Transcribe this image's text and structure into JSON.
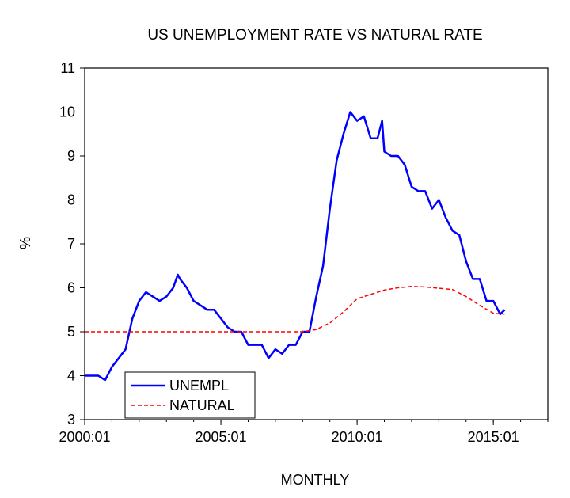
{
  "chart_data": {
    "type": "line",
    "title": "US UNEMPLOYMENT RATE VS NATURAL RATE",
    "xlabel": "MONTHLY",
    "ylabel": "%",
    "xlim": [
      "2000:01",
      "2017:01"
    ],
    "ylim": [
      3,
      11
    ],
    "x_ticks": [
      "2000:01",
      "2005:01",
      "2010:01",
      "2015:01"
    ],
    "y_ticks": [
      "3",
      "4",
      "5",
      "6",
      "7",
      "8",
      "9",
      "10",
      "11"
    ],
    "grid": false,
    "legend": {
      "placement": "bottom-left",
      "entries": [
        "UNEMPL",
        "NATURAL"
      ]
    },
    "series": [
      {
        "name": "UNEMPL",
        "color": "#0000ff",
        "style": "solid",
        "points": [
          [
            "2000:01",
            4.0
          ],
          [
            "2000:04",
            4.0
          ],
          [
            "2000:07",
            4.0
          ],
          [
            "2000:10",
            3.9
          ],
          [
            "2001:01",
            4.2
          ],
          [
            "2001:04",
            4.4
          ],
          [
            "2001:07",
            4.6
          ],
          [
            "2001:10",
            5.3
          ],
          [
            "2002:01",
            5.7
          ],
          [
            "2002:04",
            5.9
          ],
          [
            "2002:07",
            5.8
          ],
          [
            "2002:10",
            5.7
          ],
          [
            "2003:01",
            5.8
          ],
          [
            "2003:04",
            6.0
          ],
          [
            "2003:06",
            6.3
          ],
          [
            "2003:07",
            6.2
          ],
          [
            "2003:10",
            6.0
          ],
          [
            "2004:01",
            5.7
          ],
          [
            "2004:04",
            5.6
          ],
          [
            "2004:07",
            5.5
          ],
          [
            "2004:10",
            5.5
          ],
          [
            "2005:01",
            5.3
          ],
          [
            "2005:04",
            5.1
          ],
          [
            "2005:07",
            5.0
          ],
          [
            "2005:10",
            5.0
          ],
          [
            "2006:01",
            4.7
          ],
          [
            "2006:04",
            4.7
          ],
          [
            "2006:07",
            4.7
          ],
          [
            "2006:10",
            4.4
          ],
          [
            "2007:01",
            4.6
          ],
          [
            "2007:04",
            4.5
          ],
          [
            "2007:07",
            4.7
          ],
          [
            "2007:10",
            4.7
          ],
          [
            "2008:01",
            5.0
          ],
          [
            "2008:04",
            5.0
          ],
          [
            "2008:07",
            5.8
          ],
          [
            "2008:10",
            6.5
          ],
          [
            "2009:01",
            7.8
          ],
          [
            "2009:04",
            8.9
          ],
          [
            "2009:07",
            9.5
          ],
          [
            "2009:10",
            10.0
          ],
          [
            "2010:01",
            9.8
          ],
          [
            "2010:04",
            9.9
          ],
          [
            "2010:07",
            9.4
          ],
          [
            "2010:10",
            9.4
          ],
          [
            "2010:12",
            9.8
          ],
          [
            "2011:01",
            9.1
          ],
          [
            "2011:04",
            9.0
          ],
          [
            "2011:07",
            9.0
          ],
          [
            "2011:10",
            8.8
          ],
          [
            "2012:01",
            8.3
          ],
          [
            "2012:04",
            8.2
          ],
          [
            "2012:07",
            8.2
          ],
          [
            "2012:10",
            7.8
          ],
          [
            "2013:01",
            8.0
          ],
          [
            "2013:04",
            7.6
          ],
          [
            "2013:07",
            7.3
          ],
          [
            "2013:10",
            7.2
          ],
          [
            "2014:01",
            6.6
          ],
          [
            "2014:04",
            6.2
          ],
          [
            "2014:07",
            6.2
          ],
          [
            "2014:10",
            5.7
          ],
          [
            "2015:01",
            5.7
          ],
          [
            "2015:04",
            5.4
          ],
          [
            "2015:06",
            5.5
          ]
        ]
      },
      {
        "name": "NATURAL",
        "color": "#ff0000",
        "style": "dashed",
        "points": [
          [
            "2000:01",
            5.0
          ],
          [
            "2008:01",
            5.0
          ],
          [
            "2008:07",
            5.05
          ],
          [
            "2009:01",
            5.2
          ],
          [
            "2009:07",
            5.45
          ],
          [
            "2010:01",
            5.75
          ],
          [
            "2010:07",
            5.85
          ],
          [
            "2011:01",
            5.95
          ],
          [
            "2011:07",
            6.0
          ],
          [
            "2012:01",
            6.03
          ],
          [
            "2012:07",
            6.02
          ],
          [
            "2013:01",
            5.99
          ],
          [
            "2013:07",
            5.96
          ],
          [
            "2014:01",
            5.8
          ],
          [
            "2014:07",
            5.6
          ],
          [
            "2015:01",
            5.42
          ],
          [
            "2015:06",
            5.4
          ]
        ]
      }
    ]
  }
}
